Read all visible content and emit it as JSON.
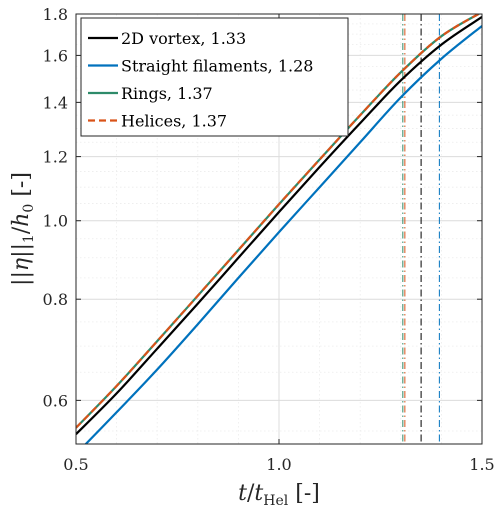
{
  "chart_data": {
    "type": "line",
    "title": "",
    "xlabel": "t/t_Hel [-]",
    "ylabel": "||η||_1/h_0 [-]",
    "x_scale": "linear",
    "y_scale": "log",
    "xlim": [
      0.5,
      1.5
    ],
    "ylim": [
      0.53,
      1.8
    ],
    "grid": true,
    "legend_position": "top-left",
    "x_ticks": [
      0.5,
      1.0,
      1.5
    ],
    "x_tick_labels": [
      "0.5",
      "1.0",
      "1.5"
    ],
    "y_ticks": [
      0.6,
      0.8,
      1.0,
      1.2,
      1.4,
      1.6,
      1.8
    ],
    "y_tick_labels": [
      "0.6",
      "0.8",
      "1.0",
      "1.2",
      "1.4",
      "1.6",
      "1.8"
    ],
    "x": [
      0.5,
      0.6,
      0.7,
      0.8,
      0.9,
      1.0,
      1.1,
      1.2,
      1.3,
      1.4,
      1.5
    ],
    "series": [
      {
        "name": "2D vortex, 1.33",
        "label": "2D vortex, 1.33",
        "color": "#000000",
        "dash": "solid",
        "marker_x": 1.35,
        "values": [
          0.545,
          0.612,
          0.695,
          0.79,
          0.9,
          1.025,
          1.165,
          1.32,
          1.49,
          1.65,
          1.785
        ]
      },
      {
        "name": "Straight filaments, 1.28",
        "label": "Straight filaments, 1.28",
        "color": "#0072bd",
        "dash": "solid",
        "marker_x": 1.395,
        "values": [
          0.515,
          0.58,
          0.655,
          0.745,
          0.85,
          0.968,
          1.1,
          1.25,
          1.42,
          1.585,
          1.74
        ]
      },
      {
        "name": "Rings, 1.37",
        "label": "Rings, 1.37",
        "color": "#2e8b6a",
        "dash": "solid",
        "marker_x": 1.305,
        "values": [
          0.555,
          0.625,
          0.71,
          0.808,
          0.92,
          1.048,
          1.19,
          1.35,
          1.525,
          1.69,
          1.81
        ]
      },
      {
        "name": "Helices, 1.37",
        "label": "Helices, 1.37",
        "color": "#d95319",
        "dash": "dashed",
        "marker_x": 1.31,
        "values": [
          0.555,
          0.625,
          0.71,
          0.808,
          0.92,
          1.048,
          1.19,
          1.35,
          1.525,
          1.69,
          1.81
        ]
      }
    ]
  }
}
